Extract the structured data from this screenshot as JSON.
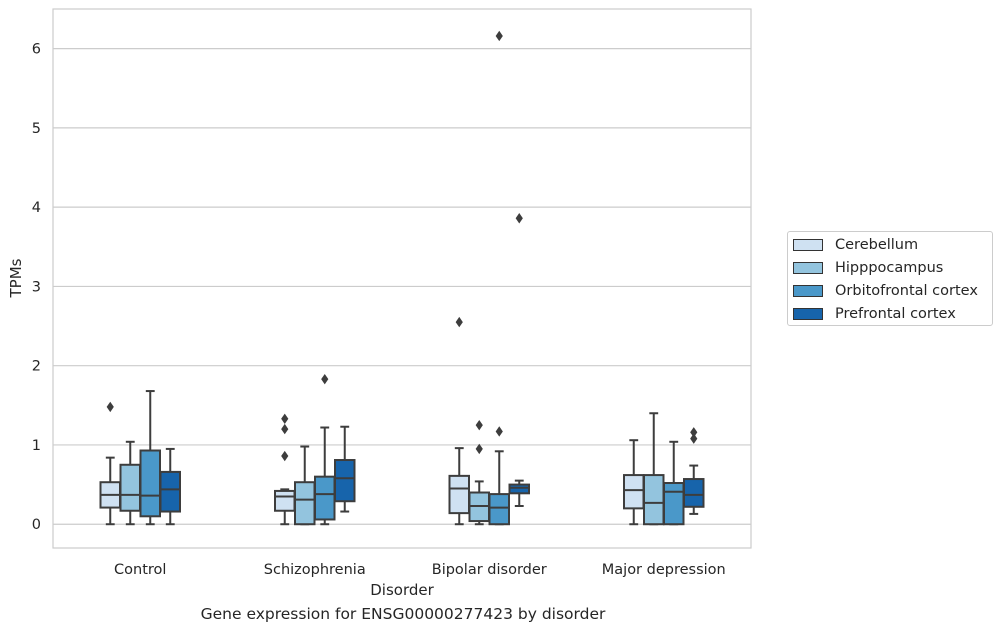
{
  "caption": "Gene expression for ENSG00000277423 by disorder",
  "colors": {
    "Cerebellum": "#cfe1f2",
    "Hipppocampus": "#93c4de",
    "Orbitofrontal cortex": "#4a98c9",
    "Prefrontal cortex": "#1764ab",
    "grid": "#cccccc",
    "line": "#3d3d3d"
  },
  "chart_data": {
    "type": "box",
    "title": "",
    "xlabel": "Disorder",
    "ylabel": "TPMs",
    "ylim": [
      -0.3,
      6.5
    ],
    "yticks": [
      0,
      1,
      2,
      3,
      4,
      5,
      6
    ],
    "grid": true,
    "legend_position": "right",
    "categories": [
      "Control",
      "Schizophrenia",
      "Bipolar disorder",
      "Major depression"
    ],
    "series": [
      {
        "name": "Cerebellum",
        "boxes": [
          {
            "whislo": 0.0,
            "q1": 0.21,
            "med": 0.37,
            "q3": 0.53,
            "whishi": 0.84,
            "fliers": [
              1.48
            ]
          },
          {
            "whislo": 0.0,
            "q1": 0.17,
            "med": 0.35,
            "q3": 0.42,
            "whishi": 0.44,
            "fliers": [
              0.86,
              1.2,
              1.33
            ]
          },
          {
            "whislo": 0.0,
            "q1": 0.14,
            "med": 0.45,
            "q3": 0.61,
            "whishi": 0.96,
            "fliers": [
              2.55
            ]
          },
          {
            "whislo": 0.0,
            "q1": 0.2,
            "med": 0.43,
            "q3": 0.62,
            "whishi": 1.06,
            "fliers": []
          }
        ]
      },
      {
        "name": "Hipppocampus",
        "boxes": [
          {
            "whislo": 0.0,
            "q1": 0.17,
            "med": 0.37,
            "q3": 0.75,
            "whishi": 1.04,
            "fliers": []
          },
          {
            "whislo": 0.0,
            "q1": 0.0,
            "med": 0.31,
            "q3": 0.53,
            "whishi": 0.98,
            "fliers": []
          },
          {
            "whislo": 0.0,
            "q1": 0.04,
            "med": 0.23,
            "q3": 0.4,
            "whishi": 0.54,
            "fliers": [
              0.95,
              1.25
            ]
          },
          {
            "whislo": 0.0,
            "q1": 0.0,
            "med": 0.27,
            "q3": 0.62,
            "whishi": 1.4,
            "fliers": []
          }
        ]
      },
      {
        "name": "Orbitofrontal cortex",
        "boxes": [
          {
            "whislo": 0.0,
            "q1": 0.1,
            "med": 0.36,
            "q3": 0.93,
            "whishi": 1.68,
            "fliers": []
          },
          {
            "whislo": 0.0,
            "q1": 0.06,
            "med": 0.38,
            "q3": 0.6,
            "whishi": 1.22,
            "fliers": [
              1.83
            ]
          },
          {
            "whislo": 0.0,
            "q1": 0.0,
            "med": 0.21,
            "q3": 0.38,
            "whishi": 0.92,
            "fliers": [
              1.17,
              6.16
            ]
          },
          {
            "whislo": 0.0,
            "q1": 0.0,
            "med": 0.41,
            "q3": 0.52,
            "whishi": 1.04,
            "fliers": []
          }
        ]
      },
      {
        "name": "Prefrontal cortex",
        "boxes": [
          {
            "whislo": 0.0,
            "q1": 0.16,
            "med": 0.44,
            "q3": 0.66,
            "whishi": 0.95,
            "fliers": []
          },
          {
            "whislo": 0.16,
            "q1": 0.29,
            "med": 0.58,
            "q3": 0.81,
            "whishi": 1.23,
            "fliers": []
          },
          {
            "whislo": 0.23,
            "q1": 0.39,
            "med": 0.46,
            "q3": 0.5,
            "whishi": 0.55,
            "fliers": [
              3.86
            ]
          },
          {
            "whislo": 0.13,
            "q1": 0.22,
            "med": 0.37,
            "q3": 0.57,
            "whishi": 0.74,
            "fliers": [
              1.08,
              1.16
            ]
          }
        ]
      }
    ]
  }
}
